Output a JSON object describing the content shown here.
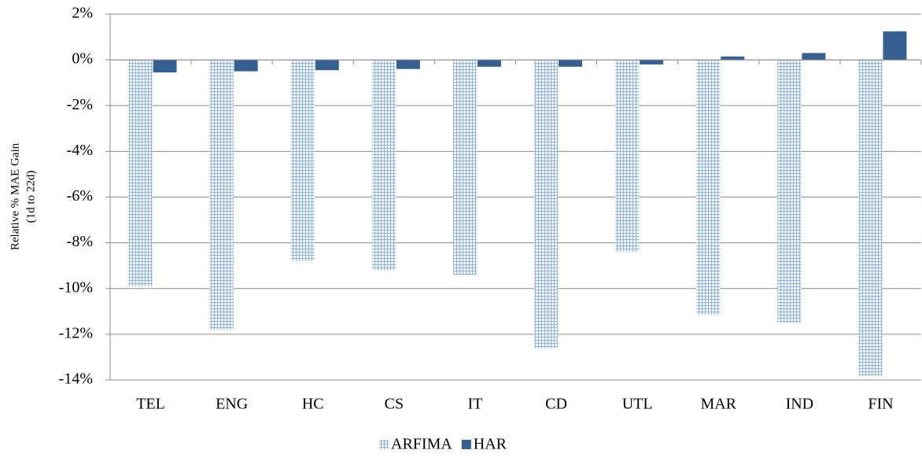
{
  "chart_data": {
    "type": "bar",
    "y_label": [
      "Relative % MAE Gain",
      "(1d to 22d)"
    ],
    "categories": [
      "TEL",
      "ENG",
      "HC",
      "CS",
      "IT",
      "CD",
      "UTL",
      "MAR",
      "IND",
      "FIN"
    ],
    "series": [
      {
        "name": "ARFIMA",
        "color": "#8eb4e3",
        "pattern": "grid",
        "values": [
          -9.9,
          -11.8,
          -8.8,
          -9.2,
          -9.4,
          -12.6,
          -8.4,
          -11.15,
          -11.5,
          -13.8
        ]
      },
      {
        "name": "HAR",
        "color": "#376092",
        "values": [
          -0.55,
          -0.5,
          -0.45,
          -0.4,
          -0.3,
          -0.3,
          -0.2,
          0.15,
          0.3,
          1.25
        ]
      }
    ],
    "ylim": [
      -14,
      2
    ],
    "yticks": [
      {
        "value": 2,
        "label": "2%"
      },
      {
        "value": 0,
        "label": "0%"
      },
      {
        "value": -2,
        "label": "-2%"
      },
      {
        "value": -4,
        "label": "-4%"
      },
      {
        "value": -6,
        "label": "-6%"
      },
      {
        "value": -8,
        "label": "-8%"
      },
      {
        "value": -10,
        "label": "-10%"
      },
      {
        "value": -12,
        "label": "-12%"
      },
      {
        "value": -14,
        "label": "-14%"
      }
    ],
    "grid": true,
    "legend": "bottom"
  }
}
